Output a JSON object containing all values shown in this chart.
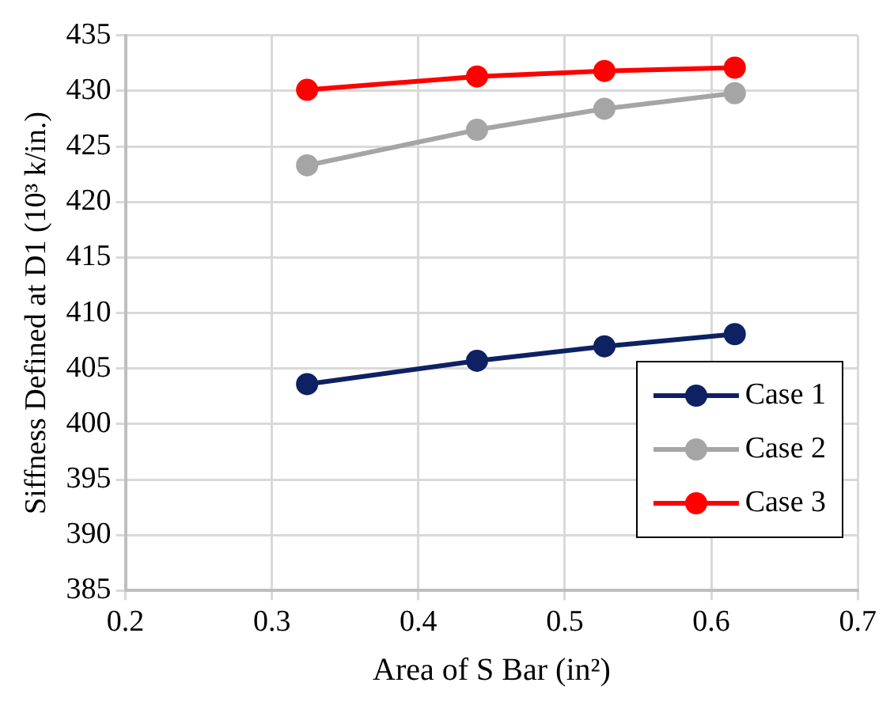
{
  "chart_data": {
    "type": "line",
    "xlabel": "Area of S Bar (in²)",
    "ylabel": "Siffness Defined at D1 (10³ k/in.)",
    "xlim": [
      0.2,
      0.7
    ],
    "xticks": [
      0.2,
      0.3,
      0.4,
      0.5,
      0.6,
      0.7
    ],
    "ylim": [
      385,
      435
    ],
    "yticks": [
      385,
      390,
      395,
      400,
      405,
      410,
      415,
      420,
      425,
      430,
      435
    ],
    "x": [
      0.324,
      0.44,
      0.527,
      0.616
    ],
    "series": [
      {
        "name": "Case 1",
        "color": "#0d2163",
        "values": [
          403.6,
          405.7,
          407.0,
          408.1
        ]
      },
      {
        "name": "Case 2",
        "color": "#a5a5a5",
        "values": [
          423.3,
          426.5,
          428.4,
          429.8
        ]
      },
      {
        "name": "Case 3",
        "color": "#ff0000",
        "values": [
          430.1,
          431.3,
          431.8,
          432.1
        ]
      }
    ],
    "grid": true,
    "legend": "bottom right",
    "marker": "circle",
    "line_style": "solid"
  }
}
